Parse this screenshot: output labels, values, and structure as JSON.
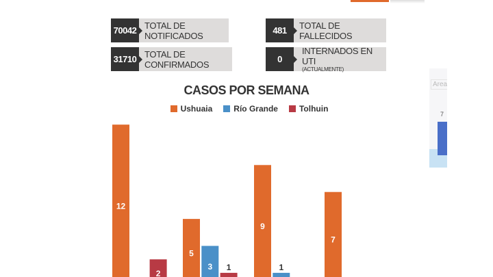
{
  "stats": [
    {
      "value": "70042",
      "label": "TOTAL DE NOTIFICADOS"
    },
    {
      "value": "31710",
      "label": "TOTAL DE CONFIRMADOS"
    },
    {
      "value": "481",
      "label": "TOTAL DE FALLECIDOS"
    },
    {
      "value": "0",
      "label": "INTERNADOS EN UTI",
      "sublabel": "(ACTUALMENTE)"
    }
  ],
  "chart_data": {
    "type": "bar",
    "title": "CASOS POR SEMANA",
    "categories": [
      "",
      "",
      "",
      ""
    ],
    "series": [
      {
        "name": "Ushuaia",
        "color": "#e06a2c",
        "values": [
          12,
          5,
          9,
          7
        ]
      },
      {
        "name": "Río Grande",
        "color": "#4a90c8",
        "values": [
          0,
          3,
          1,
          0
        ]
      },
      {
        "name": "Tolhuin",
        "color": "#b83a44",
        "values": [
          2,
          1,
          0,
          0
        ]
      }
    ],
    "legend": "top-center",
    "grid": false
  },
  "side_fragment": {
    "label": "Area",
    "value": "7",
    "colors": {
      "bar": "#4a6fc8",
      "area": "#c8e2f4"
    }
  }
}
